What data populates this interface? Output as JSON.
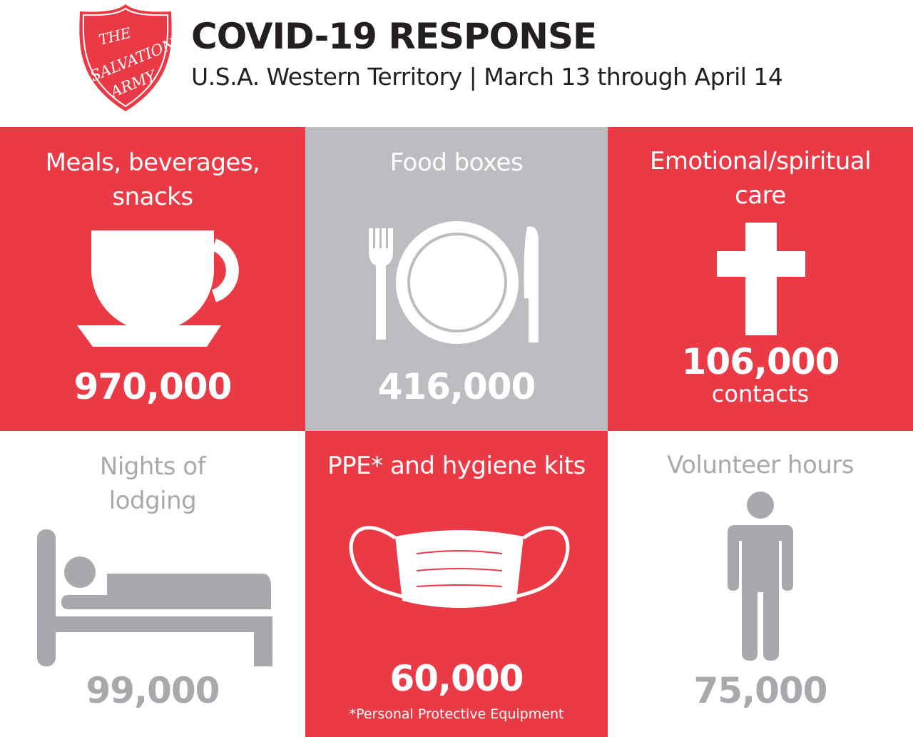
{
  "logo": {
    "text": "THE SALVATION ARMY"
  },
  "header": {
    "title": "COVID-19 RESPONSE",
    "subtitle": "U.S.A. Western Territory | March 13 through April 14"
  },
  "colors": {
    "red": "#ea3a45",
    "gray_panel": "#bcbdc0",
    "gray_text": "#a7a9ac"
  },
  "stats": [
    {
      "label_line1": "Meals, beverages,",
      "label_line2": "snacks",
      "value": "970,000",
      "icon": "coffee-cup-icon"
    },
    {
      "label_line1": "Food boxes",
      "value": "416,000",
      "icon": "plate-fork-knife-icon"
    },
    {
      "label_line1": "Emotional/spiritual",
      "label_line2": "care",
      "value": "106,000",
      "unit": "contacts",
      "icon": "cross-icon"
    },
    {
      "label_line1": "Nights of",
      "label_line2": "lodging",
      "value": "99,000",
      "icon": "bed-icon"
    },
    {
      "label_line1": "PPE* and hygiene kits",
      "value": "60,000",
      "footnote": "*Personal Protective Equipment",
      "icon": "face-mask-icon"
    },
    {
      "label_line1": "Volunteer hours",
      "value": "75,000",
      "icon": "person-icon"
    }
  ]
}
